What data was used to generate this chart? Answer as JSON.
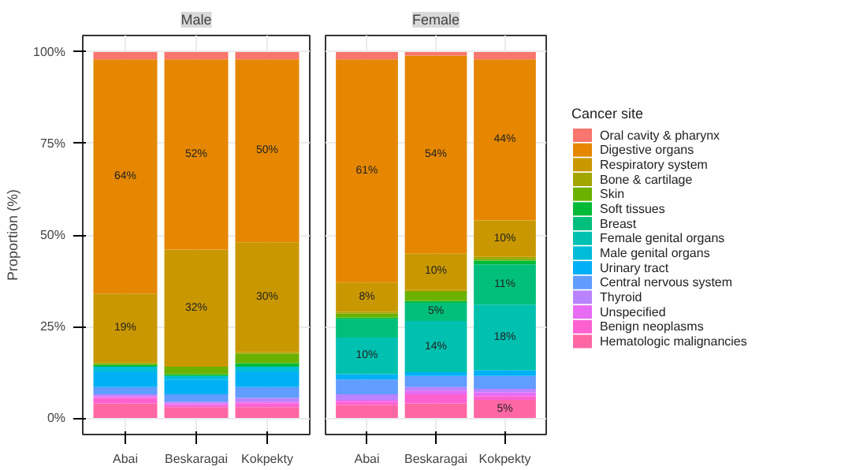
{
  "chart_data": [
    {
      "type": "bar",
      "title": "Male",
      "ylabel": "Proportion (%)",
      "categories": [
        "Abai",
        "Beskaragai",
        "Kokpekty"
      ],
      "stacked": true,
      "ylim": [
        -4.5,
        104.5
      ],
      "yticks": [
        {
          "value": 0,
          "label": "0%"
        },
        {
          "value": 25,
          "label": "25%"
        },
        {
          "value": 50,
          "label": "50%"
        },
        {
          "value": 75,
          "label": "75%"
        },
        {
          "value": 100,
          "label": "100%"
        }
      ],
      "grid": true,
      "legend": false,
      "series": [
        {
          "color": "#ff67a4",
          "values": [
            4,
            3,
            3
          ]
        },
        {
          "color": "#fd61d1",
          "values": [
            1.5,
            0.5,
            1
          ]
        },
        {
          "color": "#e76bf3",
          "values": [
            0.5,
            0.5,
            0.5
          ]
        },
        {
          "color": "#b983ff",
          "values": [
            0.5,
            0.5,
            1
          ]
        },
        {
          "color": "#619cff",
          "values": [
            2,
            2,
            3
          ]
        },
        {
          "color": "#00b0f6",
          "values": [
            4,
            4,
            4
          ]
        },
        {
          "color": "#00bcd8",
          "values": [
            1.5,
            1,
            1.5
          ]
        },
        {
          "color": "#00c0af",
          "values": [
            0,
            0,
            0
          ]
        },
        {
          "color": "#00bf7d",
          "values": [
            0,
            0,
            0
          ]
        },
        {
          "color": "#00ba38",
          "values": [
            0.5,
            0.5,
            1
          ]
        },
        {
          "color": "#6bb100",
          "values": [
            0.5,
            2,
            2.5
          ]
        },
        {
          "color": "#a3a500",
          "values": [
            0,
            0,
            0.5
          ]
        },
        {
          "color": "#c99800",
          "values": [
            19,
            32,
            30
          ],
          "value_labels": [
            "19%",
            "32%",
            "30%"
          ]
        },
        {
          "color": "#e58700",
          "values": [
            64,
            52,
            50
          ],
          "value_labels": [
            "64%",
            "52%",
            "50%"
          ]
        },
        {
          "color": "#f8766d",
          "values": [
            2,
            2,
            2
          ]
        }
      ]
    },
    {
      "type": "bar",
      "title": "Female",
      "categories": [
        "Abai",
        "Beskaragai",
        "Kokpekty"
      ],
      "stacked": true,
      "ylim": [
        -4.5,
        104.5
      ],
      "yticks": [
        0,
        25,
        50,
        75,
        100
      ],
      "tick_labels": "x",
      "grid": true,
      "legend": "right",
      "legend_title": "Cancer site",
      "series": [
        {
          "name": "Hematologic malignancies",
          "color": "#ff67a4",
          "values": [
            3.5,
            4,
            5
          ],
          "value_labels": [
            null,
            null,
            "5%"
          ]
        },
        {
          "name": "Benign neoplasms",
          "color": "#fd61d1",
          "values": [
            1,
            2.5,
            1
          ]
        },
        {
          "name": "Unspecified",
          "color": "#e76bf3",
          "values": [
            0.5,
            1,
            1
          ]
        },
        {
          "name": "Thyroid",
          "color": "#b983ff",
          "values": [
            1.5,
            1,
            1
          ]
        },
        {
          "name": "Central nervous system",
          "color": "#619cff",
          "values": [
            4,
            3,
            3.5
          ]
        },
        {
          "name": "Urinary tract",
          "color": "#00b0f6",
          "values": [
            1.5,
            1,
            1.5
          ]
        },
        {
          "name": "Male genital organs",
          "color": "#00bcd8",
          "values": [
            0,
            0,
            0
          ]
        },
        {
          "name": "Female genital organs",
          "color": "#00c0af",
          "values": [
            10,
            14,
            18
          ],
          "value_labels": [
            "10%",
            "14%",
            "18%"
          ]
        },
        {
          "name": "Breast",
          "color": "#00bf7d",
          "values": [
            5,
            5,
            11
          ],
          "value_labels": [
            null,
            "5%",
            "11%"
          ]
        },
        {
          "name": "Soft tissues",
          "color": "#00ba38",
          "values": [
            0.5,
            0.5,
            1
          ]
        },
        {
          "name": "Skin",
          "color": "#6bb100",
          "values": [
            1,
            2.5,
            0.5
          ]
        },
        {
          "name": "Bone & cartilage",
          "color": "#a3a500",
          "values": [
            0.5,
            0.5,
            0.5
          ]
        },
        {
          "name": "Respiratory system",
          "color": "#c99800",
          "values": [
            8,
            10,
            10
          ],
          "value_labels": [
            "8%",
            "10%",
            "10%"
          ]
        },
        {
          "name": "Digestive organs",
          "color": "#e58700",
          "values": [
            61,
            54,
            44
          ],
          "value_labels": [
            "61%",
            "54%",
            "44%"
          ]
        },
        {
          "name": "Oral cavity & pharynx",
          "color": "#f8766d",
          "values": [
            2,
            1,
            2
          ]
        }
      ]
    }
  ]
}
